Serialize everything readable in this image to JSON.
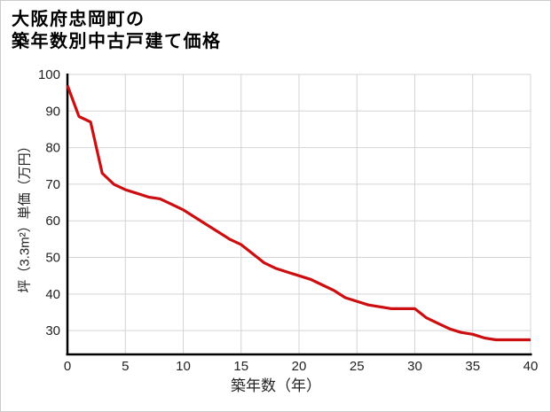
{
  "title": {
    "line1": "大阪府忠岡町の",
    "line2": "築年数別中古戸建て価格"
  },
  "chart_data": {
    "type": "line",
    "title": "大阪府忠岡町の築年数別中古戸建て価格",
    "xlabel": "築年数（年）",
    "ylabel": "坪（3.3m²）単価（万円）",
    "x": [
      0,
      1,
      2,
      3,
      4,
      5,
      6,
      7,
      8,
      9,
      10,
      11,
      12,
      13,
      14,
      15,
      16,
      17,
      18,
      19,
      20,
      21,
      22,
      23,
      24,
      25,
      26,
      27,
      28,
      29,
      30,
      31,
      32,
      33,
      34,
      35,
      36,
      37,
      38,
      39,
      40
    ],
    "y": [
      97,
      88.5,
      87,
      73,
      70,
      68.5,
      67.5,
      66.5,
      66,
      64.5,
      63,
      61,
      59,
      57,
      55,
      53.5,
      51,
      48.5,
      47,
      46,
      45,
      44,
      42.5,
      41,
      39,
      38,
      37,
      36.5,
      36,
      36,
      36,
      33.5,
      32,
      30.5,
      29.5,
      29,
      28,
      27.5,
      27.5,
      27.5,
      27.5
    ],
    "xlim": [
      0,
      40
    ],
    "ylim": [
      23.5,
      100
    ],
    "x_ticks": [
      0,
      5,
      10,
      15,
      20,
      25,
      30,
      35,
      40
    ],
    "y_ticks": [
      30,
      40,
      50,
      60,
      70,
      80,
      90,
      100
    ],
    "grid": true,
    "legend": "none",
    "line_color": "#cc0e11",
    "axis_color": "#000000",
    "grid_color": "#d4d4d4",
    "tick_color": "#222222"
  }
}
